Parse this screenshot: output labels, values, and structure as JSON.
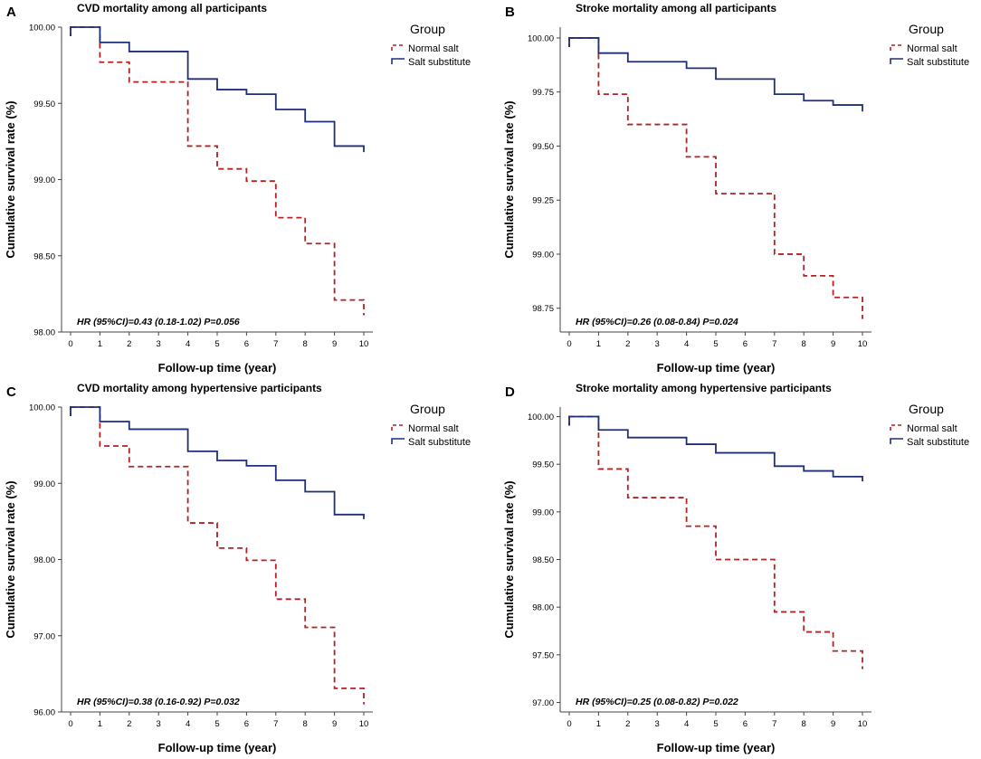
{
  "chart_data": [
    {
      "type": "line",
      "panel": "A",
      "title": "CVD mortality among all participants",
      "xlabel": "Follow-up time (year)",
      "ylabel": "Cumulative survival rate (%)",
      "xticks": [
        "0",
        "1",
        "2",
        "3",
        "4",
        "5",
        "6",
        "7",
        "8",
        "9",
        "10"
      ],
      "yticks": [
        "98.00",
        "98.50",
        "99.00",
        "99.50",
        "100.00"
      ],
      "xlim": [
        0,
        10
      ],
      "ylim": [
        98.0,
        100.0
      ],
      "legend_title": "Group",
      "annotation": "HR (95%CI)=0.43 (0.18-1.02) P=0.056",
      "series": [
        {
          "name": "Normal salt",
          "color": "#b22222",
          "dash": true,
          "x": [
            0,
            1,
            2,
            4,
            5,
            6,
            7,
            8,
            9,
            10
          ],
          "values": [
            100.0,
            99.77,
            99.64,
            99.22,
            99.07,
            98.99,
            98.75,
            98.58,
            98.21,
            98.11
          ]
        },
        {
          "name": "Salt substitute",
          "color": "#1f2f7a",
          "dash": false,
          "x": [
            0,
            1,
            2,
            4,
            5,
            6,
            7,
            8,
            9,
            10
          ],
          "values": [
            100.0,
            99.9,
            99.84,
            99.66,
            99.59,
            99.56,
            99.46,
            99.38,
            99.22,
            99.18
          ]
        }
      ]
    },
    {
      "type": "line",
      "panel": "B",
      "title": "Stroke mortality among all participants",
      "xlabel": "Follow-up time (year)",
      "ylabel": "Cumulative survival rate (%)",
      "xticks": [
        "0",
        "1",
        "2",
        "3",
        "4",
        "5",
        "6",
        "7",
        "8",
        "9",
        "10"
      ],
      "yticks": [
        "98.75",
        "99.00",
        "99.25",
        "99.50",
        "99.75",
        "100.00"
      ],
      "xlim": [
        0,
        10
      ],
      "ylim": [
        98.64,
        100.05
      ],
      "legend_title": "Group",
      "annotation": "HR (95%CI)=0.26 (0.08-0.84) P=0.024",
      "series": [
        {
          "name": "Normal salt",
          "color": "#b22222",
          "dash": true,
          "x": [
            0,
            1,
            2,
            4,
            5,
            7,
            8,
            9,
            10
          ],
          "values": [
            100.0,
            99.74,
            99.6,
            99.45,
            99.28,
            99.0,
            98.9,
            98.8,
            98.7
          ]
        },
        {
          "name": "Salt substitute",
          "color": "#1f2f7a",
          "dash": false,
          "x": [
            0,
            1,
            2,
            4,
            5,
            7,
            8,
            9,
            10
          ],
          "values": [
            100.0,
            99.93,
            99.89,
            99.86,
            99.81,
            99.74,
            99.71,
            99.69,
            99.66
          ]
        }
      ]
    },
    {
      "type": "line",
      "panel": "C",
      "title": "CVD mortality among hypertensive participants",
      "xlabel": "Follow-up time (year)",
      "ylabel": "Cumulative survival rate (%)",
      "xticks": [
        "0",
        "1",
        "2",
        "3",
        "4",
        "5",
        "6",
        "7",
        "8",
        "9",
        "10"
      ],
      "yticks": [
        "96.00",
        "97.00",
        "98.00",
        "99.00",
        "100.00"
      ],
      "xlim": [
        0,
        10
      ],
      "ylim": [
        96.0,
        100.0
      ],
      "legend_title": "Group",
      "annotation": "HR (95%CI)=0.38 (0.16-0.92) P=0.032",
      "series": [
        {
          "name": "Normal salt",
          "color": "#b22222",
          "dash": true,
          "x": [
            0,
            1,
            2,
            4,
            5,
            6,
            7,
            8,
            9,
            10
          ],
          "values": [
            100.0,
            99.49,
            99.22,
            98.48,
            98.15,
            97.99,
            97.48,
            97.11,
            96.31,
            96.1
          ]
        },
        {
          "name": "Salt substitute",
          "color": "#1f2f7a",
          "dash": false,
          "x": [
            0,
            1,
            2,
            4,
            5,
            6,
            7,
            8,
            9,
            10
          ],
          "values": [
            100.0,
            99.81,
            99.71,
            99.42,
            99.3,
            99.23,
            99.04,
            98.89,
            98.59,
            98.53
          ]
        }
      ]
    },
    {
      "type": "line",
      "panel": "D",
      "title": "Stroke mortality among hypertensive participants",
      "xlabel": "Follow-up time (year)",
      "ylabel": "Cumulative survival rate (%)",
      "xticks": [
        "0",
        "1",
        "2",
        "3",
        "4",
        "5",
        "6",
        "7",
        "8",
        "9",
        "10"
      ],
      "yticks": [
        "97.00",
        "97.50",
        "98.00",
        "98.50",
        "99.00",
        "99.50",
        "100.00"
      ],
      "xlim": [
        0,
        10
      ],
      "ylim": [
        96.9,
        100.1
      ],
      "legend_title": "Group",
      "annotation": "HR (95%CI)=0.25 (0.08-0.82) P=0.022",
      "series": [
        {
          "name": "Normal salt",
          "color": "#b22222",
          "dash": true,
          "x": [
            0,
            1,
            2,
            4,
            5,
            7,
            8,
            9,
            10
          ],
          "values": [
            100.0,
            99.45,
            99.15,
            98.85,
            98.5,
            97.95,
            97.74,
            97.54,
            97.35
          ]
        },
        {
          "name": "Salt substitute",
          "color": "#1f2f7a",
          "dash": false,
          "x": [
            0,
            1,
            2,
            4,
            5,
            7,
            8,
            9,
            10
          ],
          "values": [
            100.0,
            99.86,
            99.78,
            99.71,
            99.62,
            99.48,
            99.43,
            99.37,
            99.32
          ]
        }
      ]
    }
  ]
}
